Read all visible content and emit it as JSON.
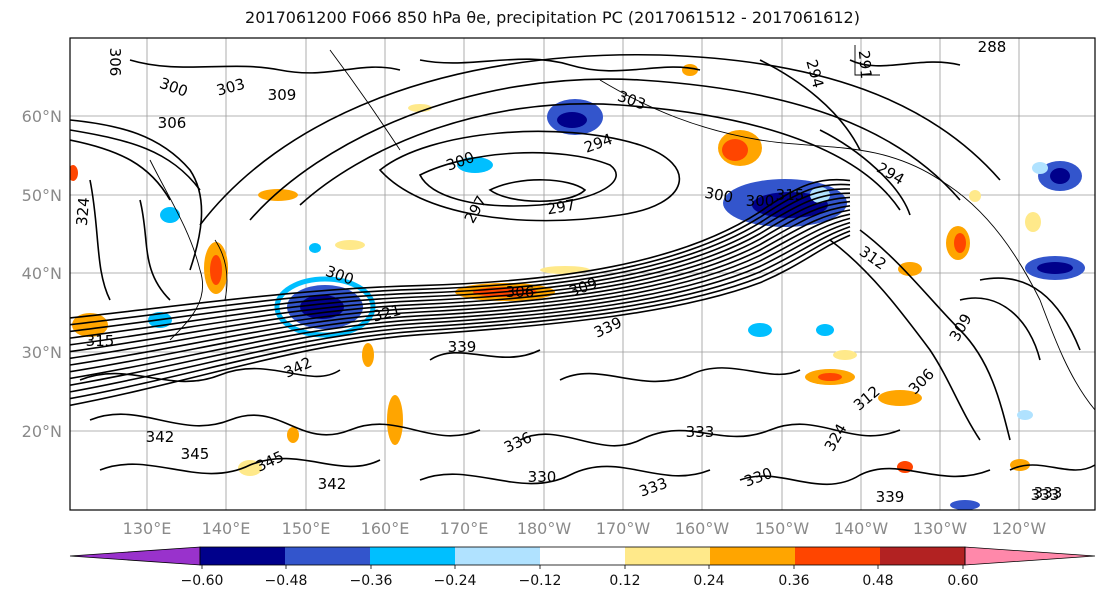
{
  "title": "2017061200 F066 850 hPa θe, precipitation PC (2017061512 - 2017061612)",
  "map": {
    "lon_ticks": [
      "130°E",
      "140°E",
      "150°E",
      "160°E",
      "170°E",
      "180°W",
      "170°W",
      "160°W",
      "150°W",
      "140°W",
      "130°W",
      "120°W"
    ],
    "lat_ticks": [
      "60°N",
      "50°N",
      "40°N",
      "30°N",
      "20°N"
    ],
    "contour_labels": [
      "306",
      "300",
      "303",
      "309",
      "306",
      "300",
      "303",
      "288",
      "294",
      "291",
      "294",
      "300",
      "297",
      "297",
      "294",
      "300",
      "312",
      "315",
      "300",
      "306",
      "309",
      "339",
      "342",
      "339",
      "312",
      "309",
      "306",
      "324",
      "342",
      "345",
      "345",
      "342",
      "336",
      "330",
      "333",
      "333",
      "324",
      "330",
      "339",
      "333",
      "333",
      "315",
      "321"
    ]
  },
  "colorbar": {
    "colors": [
      "#9932cc",
      "#00008b",
      "#3355cc",
      "#00bfff",
      "#b0e2ff",
      "#ffffff",
      "#ffe98a",
      "#ffa500",
      "#ff4500",
      "#b22222",
      "#ff88aa"
    ],
    "tick_labels": [
      "−0.60",
      "−0.48",
      "−0.36",
      "−0.24",
      "−0.12",
      "0.12",
      "0.24",
      "0.36",
      "0.48",
      "0.60"
    ]
  }
}
